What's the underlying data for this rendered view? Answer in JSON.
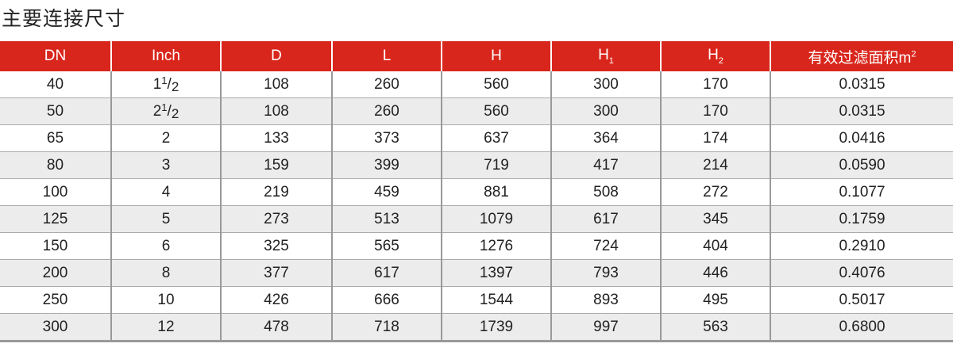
{
  "title": "主要连接尺寸",
  "colors": {
    "header_bg": "#d9261c",
    "alt_row": "#ececec"
  },
  "headers": [
    {
      "text": "DN"
    },
    {
      "text": "Inch"
    },
    {
      "text": "D"
    },
    {
      "text": "L"
    },
    {
      "text": "H"
    },
    {
      "text": "H",
      "sub": "1"
    },
    {
      "text": "H",
      "sub": "2"
    },
    {
      "text": "有效过滤面积m",
      "sup": "2"
    }
  ],
  "rows": [
    {
      "dn": "40",
      "inch": {
        "whole": "1",
        "num": "1",
        "den": "2"
      },
      "d": "108",
      "l": "260",
      "h": "560",
      "h1": "300",
      "h2": "170",
      "area": "0.0315"
    },
    {
      "dn": "50",
      "inch": {
        "whole": "2",
        "num": "1",
        "den": "2"
      },
      "d": "108",
      "l": "260",
      "h": "560",
      "h1": "300",
      "h2": "170",
      "area": "0.0315"
    },
    {
      "dn": "65",
      "inch": {
        "whole": "2"
      },
      "d": "133",
      "l": "373",
      "h": "637",
      "h1": "364",
      "h2": "174",
      "area": "0.0416"
    },
    {
      "dn": "80",
      "inch": {
        "whole": "3"
      },
      "d": "159",
      "l": "399",
      "h": "719",
      "h1": "417",
      "h2": "214",
      "area": "0.0590"
    },
    {
      "dn": "100",
      "inch": {
        "whole": "4"
      },
      "d": "219",
      "l": "459",
      "h": "881",
      "h1": "508",
      "h2": "272",
      "area": "0.1077"
    },
    {
      "dn": "125",
      "inch": {
        "whole": "5"
      },
      "d": "273",
      "l": "513",
      "h": "1079",
      "h1": "617",
      "h2": "345",
      "area": "0.1759"
    },
    {
      "dn": "150",
      "inch": {
        "whole": "6"
      },
      "d": "325",
      "l": "565",
      "h": "1276",
      "h1": "724",
      "h2": "404",
      "area": "0.2910"
    },
    {
      "dn": "200",
      "inch": {
        "whole": "8"
      },
      "d": "377",
      "l": "617",
      "h": "1397",
      "h1": "793",
      "h2": "446",
      "area": "0.4076"
    },
    {
      "dn": "250",
      "inch": {
        "whole": "10"
      },
      "d": "426",
      "l": "666",
      "h": "1544",
      "h1": "893",
      "h2": "495",
      "area": "0.5017"
    },
    {
      "dn": "300",
      "inch": {
        "whole": "12"
      },
      "d": "478",
      "l": "718",
      "h": "1739",
      "h1": "997",
      "h2": "563",
      "area": "0.6800"
    }
  ]
}
